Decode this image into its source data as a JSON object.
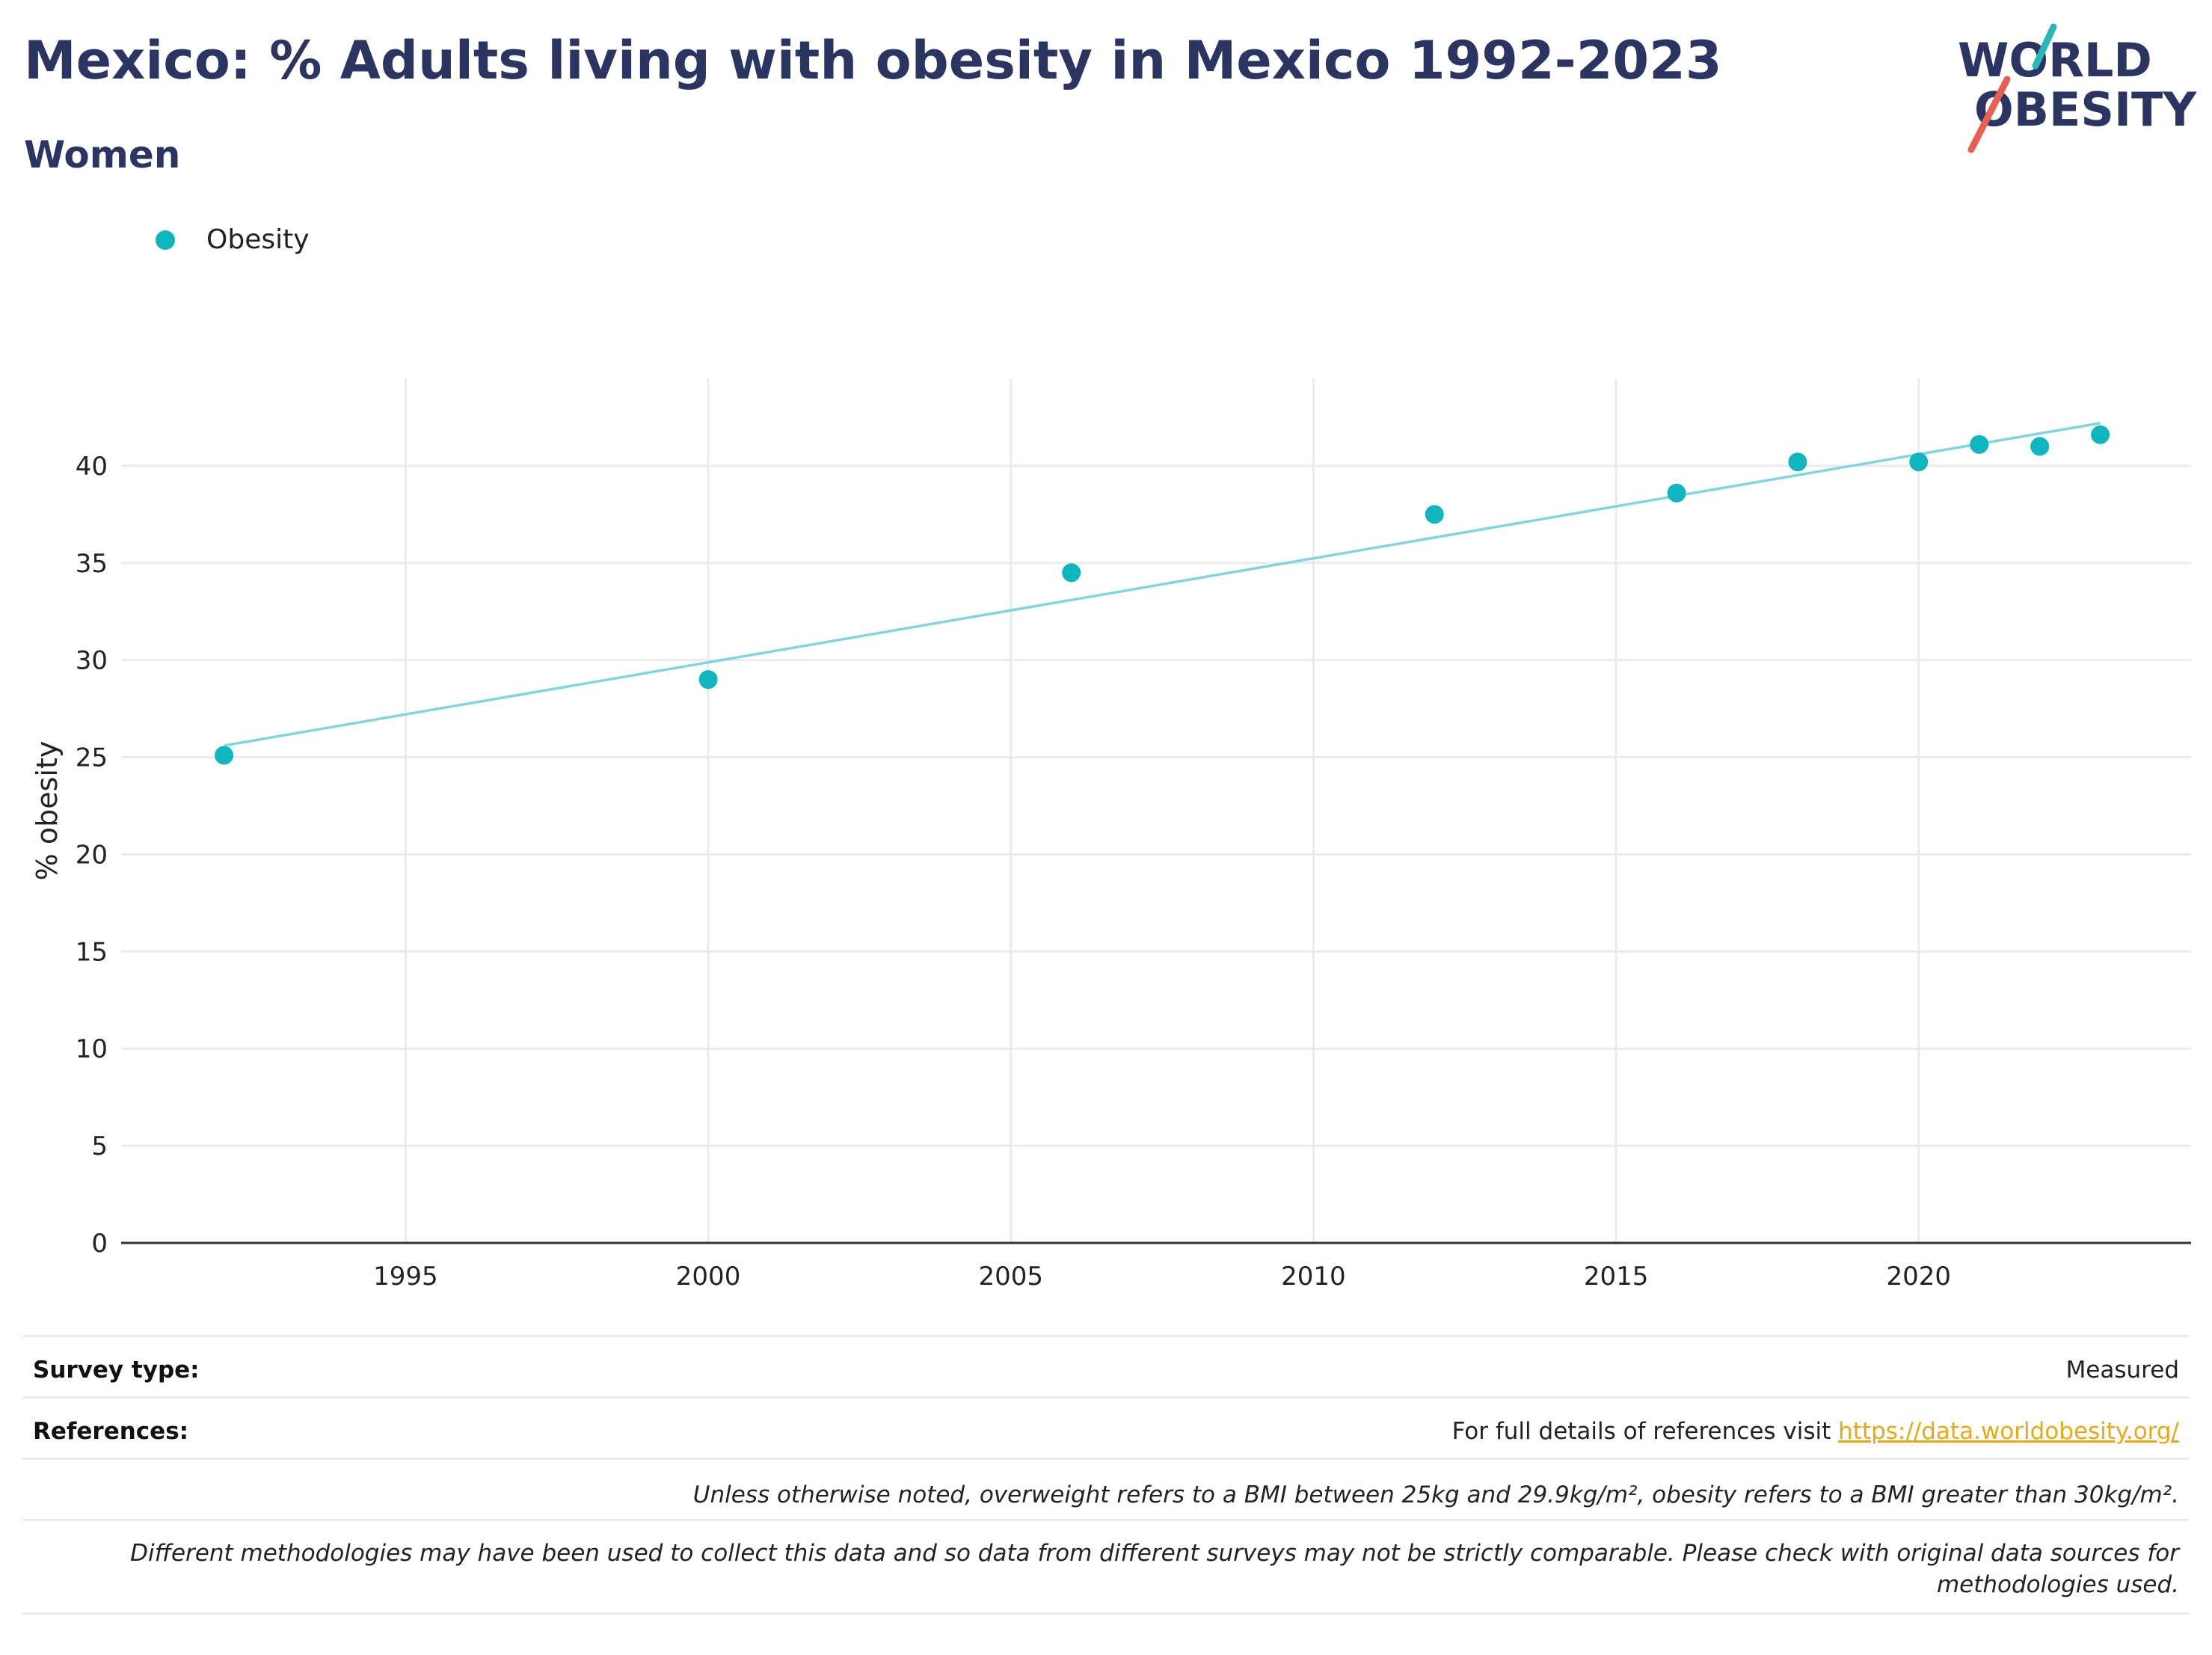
{
  "header": {
    "title": "Mexico: % Adults living with obesity in Mexico 1992-2023",
    "subtitle": "Women"
  },
  "logo": {
    "line1": "WORLD",
    "line2": "OBESITY"
  },
  "colors": {
    "title": "#2b3561",
    "marker": "#0fb5bf",
    "trend": "#7fd6dc",
    "grid": "#e9ebf0",
    "link": "#e8a919",
    "logo_teal": "#26b8b8",
    "logo_red": "#e8604f"
  },
  "chart_data": {
    "type": "scatter",
    "legend": {
      "label": "Obesity",
      "placement": "top-left"
    },
    "ylabel": "% obesity",
    "xlabel": "",
    "xlim": [
      1990.3,
      2024.5
    ],
    "ylim": [
      0,
      44.5
    ],
    "xticks": [
      1995,
      2000,
      2005,
      2010,
      2015,
      2020
    ],
    "yticks": [
      0,
      5,
      10,
      15,
      20,
      25,
      30,
      35,
      40
    ],
    "grid": true,
    "series": [
      {
        "name": "Obesity",
        "points": [
          {
            "x": 1992,
            "y": 25.1
          },
          {
            "x": 2000,
            "y": 29.0
          },
          {
            "x": 2006,
            "y": 34.5
          },
          {
            "x": 2012,
            "y": 37.5
          },
          {
            "x": 2016,
            "y": 38.6
          },
          {
            "x": 2018,
            "y": 40.2
          },
          {
            "x": 2020,
            "y": 40.2
          },
          {
            "x": 2021,
            "y": 41.1
          },
          {
            "x": 2022,
            "y": 41.0
          },
          {
            "x": 2023,
            "y": 41.6
          }
        ]
      }
    ],
    "trendline": {
      "x": [
        1992,
        2023
      ],
      "y": [
        25.6,
        42.2
      ]
    }
  },
  "footer": {
    "survey_label": "Survey type:",
    "survey_value": "Measured",
    "references_label": "References:",
    "references_text": "For full details of references visit ",
    "references_link": "https://data.worldobesity.org/",
    "note1": "Unless otherwise noted, overweight refers to a BMI between 25kg and 29.9kg/m², obesity refers to a BMI greater than 30kg/m².",
    "note2": "Different methodologies may have been used to collect this data and so data from different surveys may not be strictly comparable. Please check with original data sources for methodologies used."
  }
}
